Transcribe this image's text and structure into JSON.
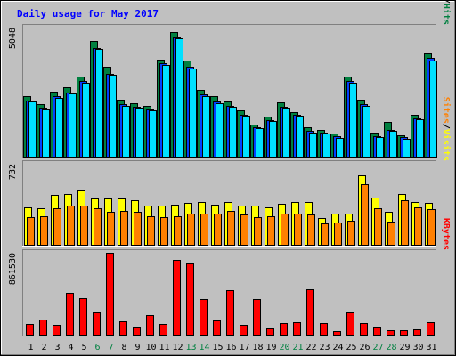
{
  "chart_data": {
    "type": "bar",
    "title": "Daily usage for May 2017",
    "categories": [
      "1",
      "2",
      "3",
      "4",
      "5",
      "6",
      "7",
      "8",
      "9",
      "10",
      "11",
      "12",
      "13",
      "14",
      "15",
      "16",
      "17",
      "18",
      "19",
      "20",
      "21",
      "22",
      "23",
      "24",
      "25",
      "26",
      "27",
      "28",
      "29",
      "30",
      "31"
    ],
    "weekend_days": [
      6,
      7,
      13,
      14,
      20,
      21,
      27,
      28
    ],
    "colors": {
      "hits": "#008040",
      "files": "#0040ff",
      "pages": "#00e0ff",
      "visits": "#ffff00",
      "sites": "#ff8000",
      "kbytes": "#ff0000",
      "weekend_tick": "#008040",
      "weekday_tick": "#000000",
      "background": "#c0c0c0",
      "title": "#0000ff"
    },
    "panels": [
      {
        "id": "top",
        "ytick_label": "5048",
        "ymax": 5048,
        "series": [
          {
            "key": "hits",
            "values": [
              2350,
              2050,
              2550,
              2700,
              3150,
              4530,
              3500,
              2220,
              2100,
              2000,
              3800,
              4880,
              3750,
              2600,
              2350,
              2150,
              1800,
              1250,
              1550,
              2120,
              1750,
              1150,
              1050,
              900,
              3150,
              2230,
              950,
              1350,
              850,
              1650,
              4050
            ]
          },
          {
            "key": "files",
            "values": [
              2200,
              1900,
              2350,
              2520,
              2950,
              4250,
              3250,
              2050,
              1950,
              1850,
              3650,
              4680,
              3500,
              2420,
              2150,
              2000,
              1650,
              1150,
              1420,
              1950,
              1620,
              1000,
              950,
              800,
              2950,
              2050,
              800,
              1050,
              750,
              1500,
              3850
            ]
          },
          {
            "key": "pages",
            "values": [
              2150,
              1850,
              2300,
              2480,
              2900,
              4200,
              3200,
              2000,
              1900,
              1800,
              3600,
              4620,
              3450,
              2380,
              2100,
              1950,
              1600,
              1100,
              1400,
              1900,
              1600,
              950,
              900,
              730,
              2880,
              2000,
              760,
              1000,
              680,
              1450,
              3750
            ]
          }
        ],
        "vertical_label": [
          {
            "text": "Pages",
            "key": "pages"
          },
          {
            "text": "/",
            "key": "slash"
          },
          {
            "text": "Files",
            "key": "files"
          },
          {
            "text": "/",
            "key": "slash"
          },
          {
            "text": "Hits",
            "key": "hits"
          }
        ]
      },
      {
        "id": "middle",
        "ytick_label": "732",
        "ymax": 732,
        "series": [
          {
            "key": "visits",
            "values": [
              335,
              330,
              450,
              460,
              490,
              420,
              415,
              420,
              400,
              350,
              350,
              360,
              380,
              390,
              365,
              390,
              350,
              350,
              340,
              370,
              390,
              390,
              240,
              280,
              280,
              630,
              430,
              300,
              460,
              390,
              380
            ]
          },
          {
            "key": "sites",
            "values": [
              250,
              260,
              330,
              350,
              350,
              330,
              300,
              305,
              300,
              255,
              250,
              255,
              285,
              285,
              280,
              305,
              270,
              250,
              260,
              285,
              285,
              275,
              190,
              200,
              215,
              550,
              330,
              210,
              400,
              340,
              325
            ]
          }
        ],
        "vertical_label": [
          {
            "text": "Sites",
            "key": "sites"
          },
          {
            "text": "/",
            "key": "slash"
          },
          {
            "text": "Visits",
            "key": "visits"
          }
        ]
      },
      {
        "id": "bottom",
        "ytick_label": "861530",
        "ymax": 861530,
        "series": [
          {
            "key": "kbytes",
            "values": [
              110000,
              160000,
              100000,
              440000,
              380000,
              230000,
              860000,
              140000,
              80000,
              210000,
              110000,
              790000,
              750000,
              370000,
              150000,
              470000,
              100000,
              370000,
              70000,
              120000,
              130000,
              480000,
              120000,
              40000,
              230000,
              120000,
              80000,
              50000,
              50000,
              60000,
              130000
            ]
          }
        ],
        "vertical_label": [
          {
            "text": "KBytes",
            "key": "kbytes"
          }
        ]
      }
    ]
  }
}
